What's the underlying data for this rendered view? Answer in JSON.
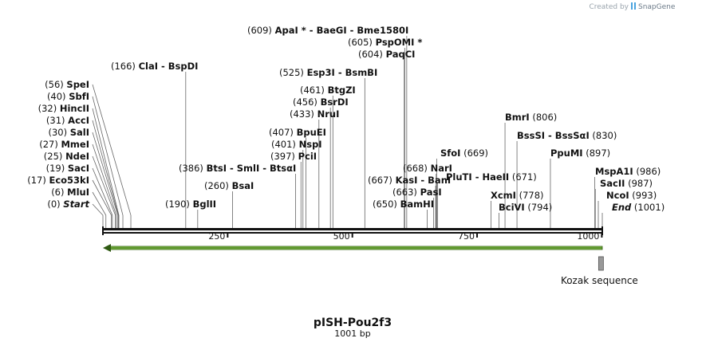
{
  "credit": "Created by",
  "brand": "SnapGene",
  "title": "pISH-Pou2f3",
  "length_label": "1001 bp",
  "sequence_length": 1001,
  "ticks": [
    "250",
    "500",
    "750",
    "1000"
  ],
  "feature": {
    "name": "Kozak sequence",
    "start": 1000,
    "end": 1001,
    "color": "#999999"
  },
  "arrow": {
    "direction": "reverse",
    "color": "#8fd14f"
  },
  "sites_left": [
    {
      "pos": 0,
      "pos_text": "(0)",
      "name": "Start",
      "italic": true
    },
    {
      "pos": 6,
      "pos_text": "(6)",
      "name": "MluI"
    },
    {
      "pos": 17,
      "pos_text": "(17)",
      "name": "Eco53kI"
    },
    {
      "pos": 19,
      "pos_text": "(19)",
      "name": "SacI"
    },
    {
      "pos": 25,
      "pos_text": "(25)",
      "name": "NdeI"
    },
    {
      "pos": 27,
      "pos_text": "(27)",
      "name": "MmeI"
    },
    {
      "pos": 30,
      "pos_text": "(30)",
      "name": "SalI"
    },
    {
      "pos": 31,
      "pos_text": "(31)",
      "name": "AccI"
    },
    {
      "pos": 32,
      "pos_text": "(32)",
      "name": "HincII"
    },
    {
      "pos": 40,
      "pos_text": "(40)",
      "name": "SbfI"
    },
    {
      "pos": 56,
      "pos_text": "(56)",
      "name": "SpeI"
    }
  ],
  "sites_mid": [
    {
      "pos": 166,
      "pos_text": "(166)",
      "names": [
        "ClaI",
        "BspDI"
      ]
    },
    {
      "pos": 190,
      "pos_text": "(190)",
      "names": [
        "BglII"
      ]
    },
    {
      "pos": 260,
      "pos_text": "(260)",
      "names": [
        "BsaI"
      ]
    },
    {
      "pos": 386,
      "pos_text": "(386)",
      "names": [
        "BtsI",
        "SmlI",
        "BtsαI"
      ]
    },
    {
      "pos": 397,
      "pos_text": "(397)",
      "names": [
        "PciI"
      ]
    },
    {
      "pos": 401,
      "pos_text": "(401)",
      "names": [
        "NspI"
      ]
    },
    {
      "pos": 407,
      "pos_text": "(407)",
      "names": [
        "BpuEI"
      ]
    },
    {
      "pos": 433,
      "pos_text": "(433)",
      "names": [
        "NruI"
      ]
    },
    {
      "pos": 456,
      "pos_text": "(456)",
      "names": [
        "BsrDI"
      ]
    },
    {
      "pos": 461,
      "pos_text": "(461)",
      "names": [
        "BtgZI"
      ]
    },
    {
      "pos": 525,
      "pos_text": "(525)",
      "names": [
        "Esp3I",
        "BsmBI"
      ]
    },
    {
      "pos": 604,
      "pos_text": "(604)",
      "names": [
        "PaqCI"
      ]
    },
    {
      "pos": 605,
      "pos_text": "(605)",
      "names": [
        "PspOMI *"
      ]
    },
    {
      "pos": 609,
      "pos_text": "(609)",
      "names": [
        "ApaI *",
        "BaeGI",
        "Bme1580I"
      ]
    },
    {
      "pos": 650,
      "pos_text": "(650)",
      "names": [
        "BamHI"
      ]
    },
    {
      "pos": 663,
      "pos_text": "(663)",
      "names": [
        "PasI"
      ]
    },
    {
      "pos": 667,
      "pos_text": "(667)",
      "names": [
        "KasI",
        "BanI"
      ]
    },
    {
      "pos": 668,
      "pos_text": "(668)",
      "names": [
        "NarI"
      ]
    }
  ],
  "sites_right": [
    {
      "pos": 669,
      "pos_text": "(669)",
      "names": [
        "SfoI"
      ]
    },
    {
      "pos": 671,
      "pos_text": "(671)",
      "names": [
        "PluTI",
        "HaeII"
      ]
    },
    {
      "pos": 778,
      "pos_text": "(778)",
      "names": [
        "XcmI"
      ]
    },
    {
      "pos": 794,
      "pos_text": "(794)",
      "names": [
        "BciVI"
      ]
    },
    {
      "pos": 806,
      "pos_text": "(806)",
      "names": [
        "BmrI"
      ]
    },
    {
      "pos": 830,
      "pos_text": "(830)",
      "names": [
        "BssSI",
        "BssSαI"
      ]
    },
    {
      "pos": 897,
      "pos_text": "(897)",
      "names": [
        "PpuMI"
      ]
    },
    {
      "pos": 986,
      "pos_text": "(986)",
      "names": [
        "MspA1I"
      ]
    },
    {
      "pos": 987,
      "pos_text": "(987)",
      "names": [
        "SacII"
      ]
    },
    {
      "pos": 993,
      "pos_text": "(993)",
      "names": [
        "NcoI"
      ]
    },
    {
      "pos": 1001,
      "pos_text": "(1001)",
      "name": "End",
      "italic": true
    }
  ]
}
